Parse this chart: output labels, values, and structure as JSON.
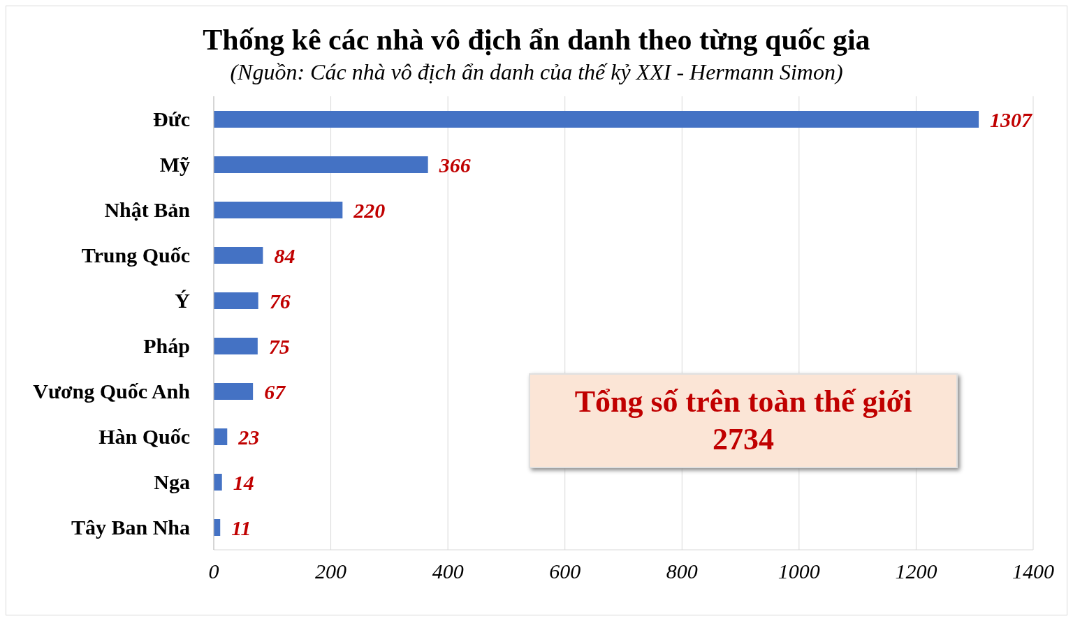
{
  "chart_data": {
    "type": "bar",
    "orientation": "horizontal",
    "title": "Thống kê các nhà vô địch ẩn danh theo từng quốc gia",
    "subtitle": "(Nguồn: Các nhà vô địch ẩn danh của thế kỷ XXI - Hermann Simon)",
    "categories": [
      "Đức",
      "Mỹ",
      "Nhật Bản",
      "Trung Quốc",
      "Ý",
      "Pháp",
      "Vương Quốc Anh",
      "Hàn Quốc",
      "Nga",
      "Tây Ban Nha"
    ],
    "values": [
      1307,
      366,
      220,
      84,
      76,
      75,
      67,
      23,
      14,
      11
    ],
    "color": "#4472c4",
    "data_labels": true,
    "grid": "x",
    "xlim": [
      0,
      1400
    ],
    "xticks": [
      0,
      200,
      400,
      600,
      800,
      1000,
      1200,
      1400
    ],
    "annotations": [
      "Tổng số trên toàn thế giới\n2734"
    ]
  }
}
